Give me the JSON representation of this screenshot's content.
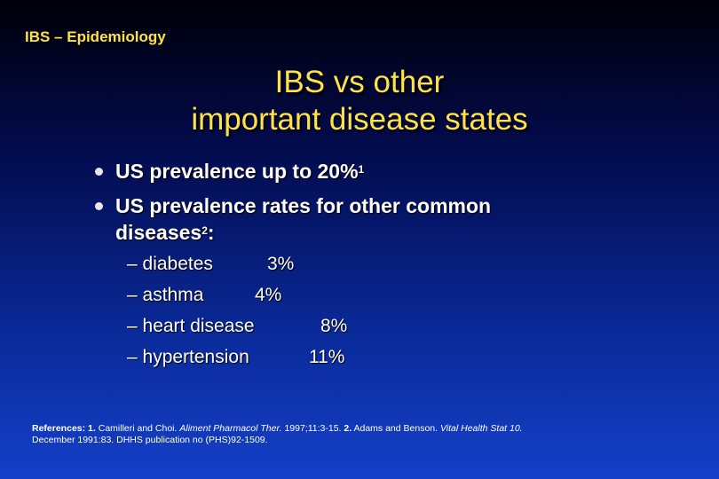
{
  "header": "IBS – Epidemiology",
  "title_line1": "IBS vs other",
  "title_line2": "important disease states",
  "bullets": [
    {
      "text": "US prevalence up to 20%",
      "sup": "1"
    },
    {
      "text_line1": "US prevalence rates for other common",
      "text_line2": "diseases",
      "sup": "2",
      "suffix": ":"
    }
  ],
  "diseases": [
    {
      "label": "– diabetes",
      "value": "3%"
    },
    {
      "label": "– asthma",
      "value": "4%"
    },
    {
      "label": "– heart disease",
      "value": "8%"
    },
    {
      "label": "– hypertension",
      "value": "11%"
    }
  ],
  "references": {
    "prefix": "References:",
    "ref1_num": "1.",
    "ref1_authors": "Camilleri and Choi.",
    "ref1_journal": "Aliment Pharmacol Ther.",
    "ref1_rest": "1997;11:3-15.",
    "ref2_num": "2.",
    "ref2_authors": "Adams and Benson.",
    "ref2_journal": "Vital Health Stat 10.",
    "ref2_rest": "December 1991:83. DHHS publication no (PHS)92-1509."
  }
}
